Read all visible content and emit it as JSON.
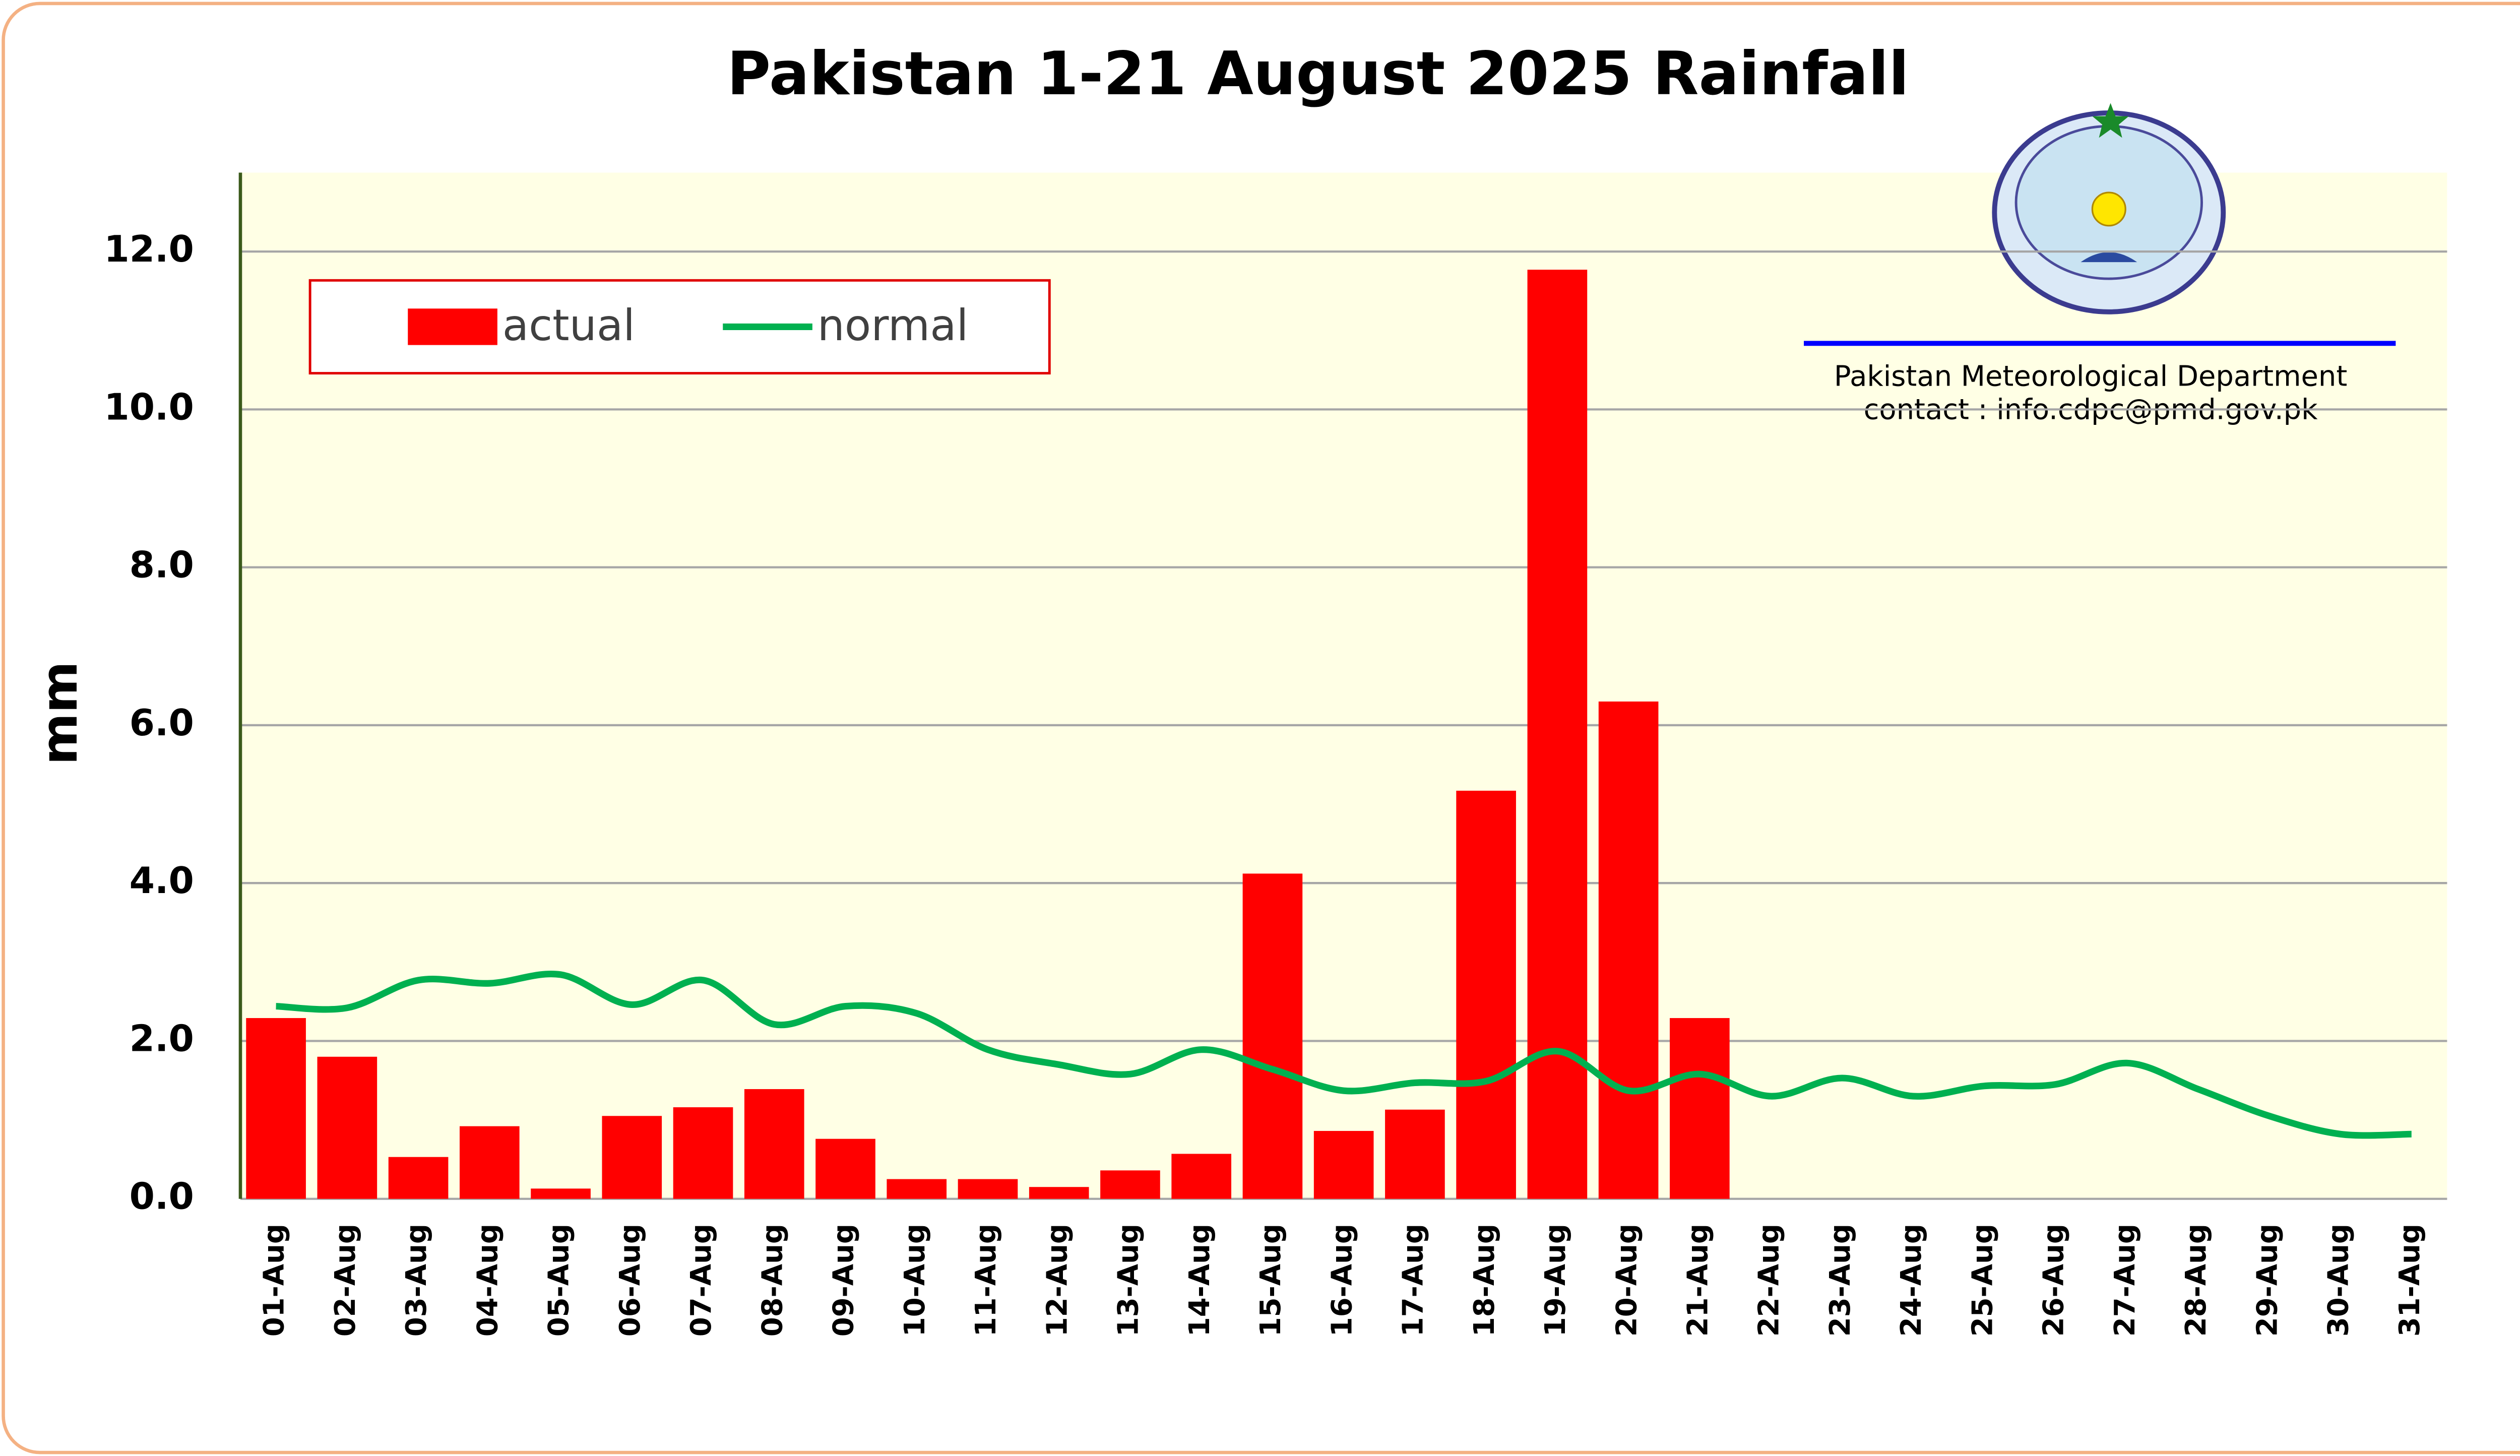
{
  "chart_data": {
    "type": "bar",
    "title": "Pakistan 1-21 August 2025 Rainfall",
    "ylabel": "mm",
    "annotations": [
      "Pakistan Meteorological Department",
      "contact : info.cdpc@pmd.gov.pk"
    ],
    "categories": [
      "01-Aug",
      "02-Aug",
      "03-Aug",
      "04-Aug",
      "05-Aug",
      "06-Aug",
      "07-Aug",
      "08-Aug",
      "09-Aug",
      "10-Aug",
      "11-Aug",
      "12-Aug",
      "13-Aug",
      "14-Aug",
      "15-Aug",
      "16-Aug",
      "17-Aug",
      "18-Aug",
      "19-Aug",
      "20-Aug",
      "21-Aug",
      "22-Aug",
      "23-Aug",
      "24-Aug",
      "25-Aug",
      "26-Aug",
      "27-Aug",
      "28-Aug",
      "29-Aug",
      "30-Aug",
      "31-Aug"
    ],
    "series": [
      {
        "name": "actual",
        "type": "bar",
        "color": "#ff0000",
        "values": [
          2.29,
          1.8,
          0.53,
          0.92,
          0.13,
          1.05,
          1.16,
          1.39,
          0.76,
          0.25,
          0.25,
          0.15,
          0.36,
          0.57,
          4.12,
          0.86,
          1.13,
          5.17,
          11.77,
          6.3,
          2.29,
          null,
          null,
          null,
          null,
          null,
          null,
          null,
          null,
          null,
          null
        ]
      },
      {
        "name": "normal",
        "type": "line",
        "color": "#00b050",
        "values": [
          2.44,
          2.42,
          2.77,
          2.73,
          2.84,
          2.46,
          2.77,
          2.21,
          2.44,
          2.35,
          1.89,
          1.7,
          1.58,
          1.89,
          1.64,
          1.37,
          1.47,
          1.49,
          1.87,
          1.37,
          1.58,
          1.3,
          1.53,
          1.3,
          1.43,
          1.45,
          1.72,
          1.39,
          1.05,
          0.82,
          0.82
        ]
      }
    ],
    "ylim": [
      0,
      13
    ],
    "yticks": [
      {
        "value": 0,
        "label": "0.0"
      },
      {
        "value": 2,
        "label": "2.0"
      },
      {
        "value": 4,
        "label": "4.0"
      },
      {
        "value": 6,
        "label": "6.0"
      },
      {
        "value": 8,
        "label": "8.0"
      },
      {
        "value": 10,
        "label": "10.0"
      },
      {
        "value": 12,
        "label": "12.0"
      }
    ],
    "grid": true,
    "legend": "top-left"
  }
}
